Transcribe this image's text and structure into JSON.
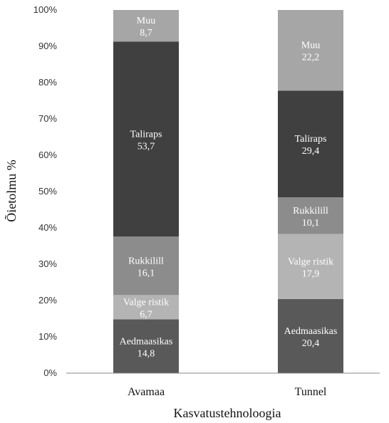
{
  "chart_data": {
    "type": "bar",
    "stacked": true,
    "normalized": true,
    "categories": [
      "Avamaa",
      "Tunnel"
    ],
    "series": [
      {
        "name": "Aedmaasikas",
        "values": [
          "14,8",
          "20,4"
        ],
        "color": "#595959"
      },
      {
        "name": "Valge ristik",
        "values": [
          "6,7",
          "17,9"
        ],
        "color": "#b4b4b4"
      },
      {
        "name": "Rukkilill",
        "values": [
          "16,1",
          "10,1"
        ],
        "color": "#8c8c8c"
      },
      {
        "name": "Taliraps",
        "values": [
          "53,7",
          "29,4"
        ],
        "color": "#404040"
      },
      {
        "name": "Muu",
        "values": [
          "8,7",
          "22,2"
        ],
        "color": "#a6a6a6"
      }
    ],
    "xlabel": "Kasvatustehnoloogia",
    "ylabel": "Õietolmu %",
    "yticks": [
      "0%",
      "10%",
      "20%",
      "30%",
      "40%",
      "50%",
      "60%",
      "70%",
      "80%",
      "90%",
      "100%"
    ],
    "ylim": [
      0,
      100
    ],
    "legend": "none",
    "grid": false
  }
}
